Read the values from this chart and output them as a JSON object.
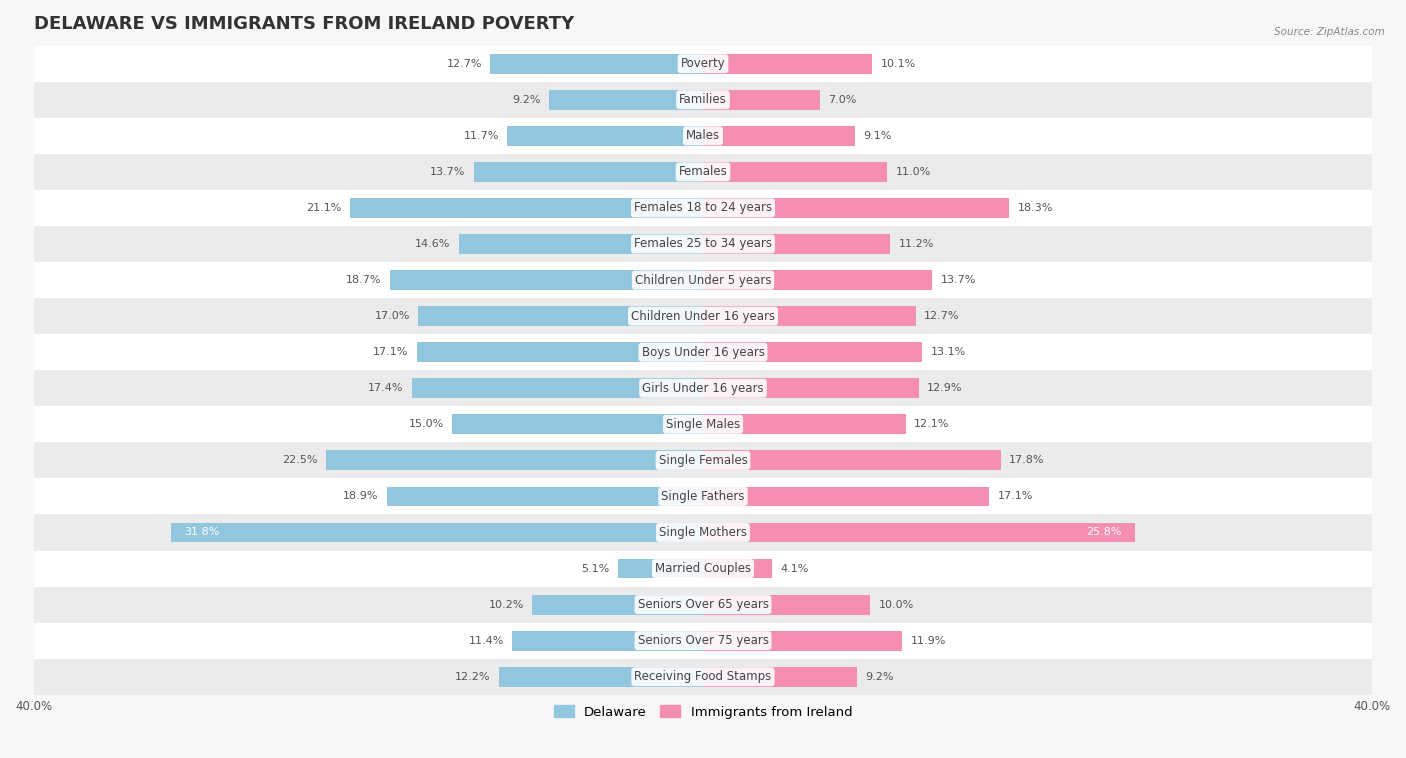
{
  "title": "DELAWARE VS IMMIGRANTS FROM IRELAND POVERTY",
  "source": "Source: ZipAtlas.com",
  "categories": [
    "Poverty",
    "Families",
    "Males",
    "Females",
    "Females 18 to 24 years",
    "Females 25 to 34 years",
    "Children Under 5 years",
    "Children Under 16 years",
    "Boys Under 16 years",
    "Girls Under 16 years",
    "Single Males",
    "Single Females",
    "Single Fathers",
    "Single Mothers",
    "Married Couples",
    "Seniors Over 65 years",
    "Seniors Over 75 years",
    "Receiving Food Stamps"
  ],
  "delaware_values": [
    12.7,
    9.2,
    11.7,
    13.7,
    21.1,
    14.6,
    18.7,
    17.0,
    17.1,
    17.4,
    15.0,
    22.5,
    18.9,
    31.8,
    5.1,
    10.2,
    11.4,
    12.2
  ],
  "ireland_values": [
    10.1,
    7.0,
    9.1,
    11.0,
    18.3,
    11.2,
    13.7,
    12.7,
    13.1,
    12.9,
    12.1,
    17.8,
    17.1,
    25.8,
    4.1,
    10.0,
    11.9,
    9.2
  ],
  "delaware_color": "#92c5de",
  "ireland_color": "#f48fb1",
  "bar_height": 0.55,
  "xlim": 40.0,
  "bg_color": "#f7f7f7",
  "row_bg_even": "#ffffff",
  "row_bg_odd": "#ebebeb",
  "title_fontsize": 13,
  "label_fontsize": 8.5,
  "value_fontsize": 8,
  "legend_fontsize": 9.5,
  "axis_fontsize": 8.5
}
